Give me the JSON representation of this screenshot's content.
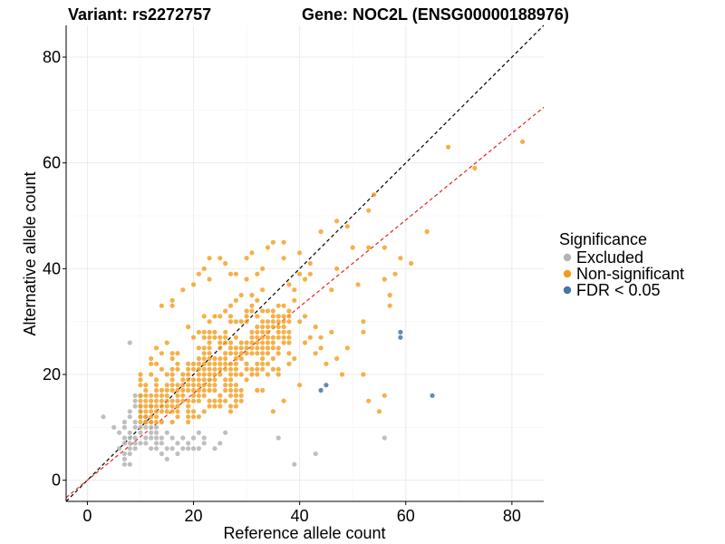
{
  "titles": {
    "variant": "Variant: rs2272757",
    "gene": "Gene: NOC2L (ENSG00000188976)"
  },
  "chart_data": {
    "type": "scatter",
    "xlabel": "Reference allele count",
    "ylabel": "Alternative allele count",
    "xlim": [
      -4,
      86
    ],
    "ylim": [
      -4,
      86
    ],
    "xticks": [
      0,
      20,
      40,
      60,
      80
    ],
    "yticks": [
      0,
      20,
      40,
      60,
      80
    ],
    "grid": true,
    "legend": {
      "title": "Significance",
      "position": "right",
      "items": [
        {
          "label": "Excluded",
          "color": "#b4b4b4"
        },
        {
          "label": "Non-significant",
          "color": "#f39c1a"
        },
        {
          "label": "FDR < 0.05",
          "color": "#4575a8"
        }
      ]
    },
    "reference_lines": [
      {
        "name": "identity",
        "slope": 1.0,
        "intercept": 0,
        "color": "#000000",
        "dash": "dashed"
      },
      {
        "name": "fit",
        "slope": 0.82,
        "intercept": 0,
        "color": "#e8221c",
        "dash": "dashed"
      }
    ],
    "series": [
      {
        "name": "Excluded",
        "color": "#b4b4b4",
        "points": [
          [
            3,
            12
          ],
          [
            5,
            10
          ],
          [
            6,
            6
          ],
          [
            6,
            9
          ],
          [
            7,
            3
          ],
          [
            7,
            4
          ],
          [
            7,
            5
          ],
          [
            7,
            7
          ],
          [
            7,
            8
          ],
          [
            7,
            10
          ],
          [
            7,
            11
          ],
          [
            8,
            3
          ],
          [
            8,
            5
          ],
          [
            8,
            6
          ],
          [
            8,
            7
          ],
          [
            8,
            8
          ],
          [
            8,
            9
          ],
          [
            8,
            12
          ],
          [
            8,
            13
          ],
          [
            8,
            26
          ],
          [
            9,
            6
          ],
          [
            9,
            7
          ],
          [
            9,
            8
          ],
          [
            9,
            10
          ],
          [
            9,
            11
          ],
          [
            9,
            14
          ],
          [
            9,
            15
          ],
          [
            9,
            16
          ],
          [
            10,
            7
          ],
          [
            10,
            9
          ],
          [
            10,
            10
          ],
          [
            10,
            12
          ],
          [
            10,
            13
          ],
          [
            10,
            14
          ],
          [
            10,
            16
          ],
          [
            11,
            7
          ],
          [
            11,
            8
          ],
          [
            11,
            10
          ],
          [
            11,
            11
          ],
          [
            11,
            12
          ],
          [
            12,
            6
          ],
          [
            12,
            8
          ],
          [
            12,
            9
          ],
          [
            12,
            10
          ],
          [
            12,
            11
          ],
          [
            12,
            14
          ],
          [
            13,
            6
          ],
          [
            13,
            7
          ],
          [
            13,
            8
          ],
          [
            13,
            9
          ],
          [
            13,
            10
          ],
          [
            14,
            5
          ],
          [
            14,
            7
          ],
          [
            14,
            8
          ],
          [
            15,
            4
          ],
          [
            15,
            6
          ],
          [
            15,
            9
          ],
          [
            16,
            6
          ],
          [
            16,
            8
          ],
          [
            17,
            5
          ],
          [
            17,
            7
          ],
          [
            18,
            6
          ],
          [
            18,
            8
          ],
          [
            19,
            6
          ],
          [
            19,
            7
          ],
          [
            20,
            6
          ],
          [
            20,
            8
          ],
          [
            21,
            6
          ],
          [
            21,
            9
          ],
          [
            22,
            7
          ],
          [
            22,
            8
          ],
          [
            24,
            6
          ],
          [
            25,
            7
          ],
          [
            26,
            9
          ],
          [
            36,
            8
          ],
          [
            39,
            3
          ],
          [
            43,
            5
          ],
          [
            56,
            8
          ]
        ]
      },
      {
        "name": "Non-significant",
        "color": "#f39c1a",
        "points": []
      },
      {
        "name": "FDR < 0.05",
        "color": "#4575a8",
        "points": [
          [
            44,
            17
          ],
          [
            45,
            18
          ],
          [
            59,
            28
          ],
          [
            59,
            27
          ],
          [
            65,
            16
          ]
        ]
      }
    ]
  }
}
